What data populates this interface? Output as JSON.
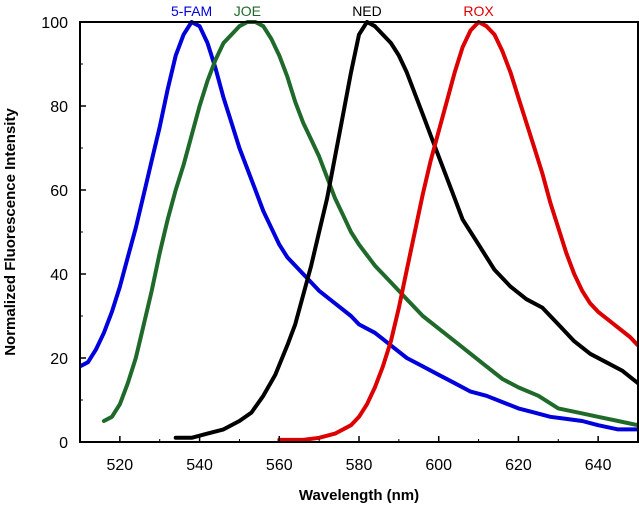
{
  "chart_data": {
    "type": "line",
    "title": "",
    "xlabel": "Wavelength (nm)",
    "ylabel": "Normalized Fluorescence Intensity",
    "xlim": [
      510,
      650
    ],
    "ylim": [
      0,
      100
    ],
    "xticks": [
      520,
      540,
      560,
      580,
      600,
      620,
      640
    ],
    "yticks": [
      0,
      20,
      40,
      60,
      80,
      100
    ],
    "grid": false,
    "legend": "series names printed above each peak",
    "series": [
      {
        "name": "5-FAM",
        "color": "#0000dd",
        "points": [
          [
            510,
            18
          ],
          [
            512,
            19
          ],
          [
            514,
            22
          ],
          [
            516,
            26
          ],
          [
            518,
            31
          ],
          [
            520,
            37
          ],
          [
            522,
            44
          ],
          [
            524,
            51
          ],
          [
            526,
            59
          ],
          [
            528,
            67
          ],
          [
            530,
            75
          ],
          [
            532,
            84
          ],
          [
            534,
            92
          ],
          [
            536,
            97
          ],
          [
            538,
            100
          ],
          [
            540,
            99
          ],
          [
            542,
            95
          ],
          [
            544,
            89
          ],
          [
            546,
            82
          ],
          [
            548,
            76
          ],
          [
            550,
            70
          ],
          [
            552,
            65
          ],
          [
            554,
            60
          ],
          [
            556,
            55
          ],
          [
            558,
            51
          ],
          [
            560,
            47
          ],
          [
            562,
            44
          ],
          [
            566,
            40
          ],
          [
            570,
            36
          ],
          [
            574,
            33
          ],
          [
            578,
            30
          ],
          [
            580,
            28
          ],
          [
            584,
            26
          ],
          [
            588,
            23
          ],
          [
            592,
            20
          ],
          [
            596,
            18
          ],
          [
            600,
            16
          ],
          [
            604,
            14
          ],
          [
            608,
            12
          ],
          [
            612,
            11
          ],
          [
            616,
            9.5
          ],
          [
            620,
            8
          ],
          [
            624,
            7
          ],
          [
            628,
            6
          ],
          [
            632,
            5.5
          ],
          [
            636,
            5
          ],
          [
            640,
            4
          ],
          [
            645,
            3
          ],
          [
            650,
            3
          ]
        ]
      },
      {
        "name": "JOE",
        "color": "#1f6a2a",
        "points": [
          [
            516,
            5
          ],
          [
            518,
            6
          ],
          [
            520,
            9
          ],
          [
            522,
            14
          ],
          [
            524,
            20
          ],
          [
            526,
            28
          ],
          [
            528,
            36
          ],
          [
            530,
            45
          ],
          [
            532,
            53
          ],
          [
            534,
            60
          ],
          [
            536,
            66
          ],
          [
            538,
            73
          ],
          [
            540,
            80
          ],
          [
            542,
            86
          ],
          [
            544,
            91
          ],
          [
            546,
            95
          ],
          [
            548,
            97
          ],
          [
            550,
            99
          ],
          [
            552,
            100
          ],
          [
            554,
            100
          ],
          [
            556,
            99
          ],
          [
            558,
            96
          ],
          [
            560,
            92
          ],
          [
            562,
            87
          ],
          [
            564,
            81
          ],
          [
            566,
            76
          ],
          [
            568,
            72
          ],
          [
            570,
            68
          ],
          [
            572,
            63
          ],
          [
            574,
            58
          ],
          [
            576,
            54
          ],
          [
            578,
            50
          ],
          [
            580,
            47
          ],
          [
            584,
            42
          ],
          [
            588,
            38
          ],
          [
            592,
            34
          ],
          [
            596,
            30
          ],
          [
            600,
            27
          ],
          [
            604,
            24
          ],
          [
            608,
            21
          ],
          [
            612,
            18
          ],
          [
            616,
            15
          ],
          [
            620,
            13
          ],
          [
            625,
            11
          ],
          [
            630,
            8
          ],
          [
            635,
            7
          ],
          [
            640,
            6
          ],
          [
            645,
            5
          ],
          [
            650,
            4
          ]
        ]
      },
      {
        "name": "NED",
        "color": "#000000",
        "points": [
          [
            534,
            1
          ],
          [
            538,
            1
          ],
          [
            542,
            2
          ],
          [
            546,
            3
          ],
          [
            550,
            5
          ],
          [
            553,
            7
          ],
          [
            556,
            11
          ],
          [
            559,
            16
          ],
          [
            562,
            23
          ],
          [
            564,
            28
          ],
          [
            566,
            35
          ],
          [
            568,
            42
          ],
          [
            570,
            50
          ],
          [
            572,
            58
          ],
          [
            574,
            68
          ],
          [
            576,
            78
          ],
          [
            578,
            88
          ],
          [
            580,
            97
          ],
          [
            582,
            100
          ],
          [
            584,
            99
          ],
          [
            586,
            97
          ],
          [
            588,
            95
          ],
          [
            590,
            92
          ],
          [
            592,
            88
          ],
          [
            594,
            83
          ],
          [
            596,
            78
          ],
          [
            598,
            73
          ],
          [
            600,
            68
          ],
          [
            602,
            63
          ],
          [
            604,
            58
          ],
          [
            606,
            53
          ],
          [
            610,
            47
          ],
          [
            614,
            41
          ],
          [
            618,
            37
          ],
          [
            622,
            34
          ],
          [
            626,
            32
          ],
          [
            630,
            28
          ],
          [
            634,
            24
          ],
          [
            638,
            21
          ],
          [
            642,
            19
          ],
          [
            646,
            17
          ],
          [
            650,
            14
          ]
        ]
      },
      {
        "name": "ROX",
        "color": "#dd0000",
        "points": [
          [
            560,
            0.5
          ],
          [
            566,
            0.5
          ],
          [
            570,
            1
          ],
          [
            574,
            2
          ],
          [
            578,
            4
          ],
          [
            580,
            6
          ],
          [
            582,
            9
          ],
          [
            584,
            13
          ],
          [
            586,
            18
          ],
          [
            588,
            24
          ],
          [
            590,
            32
          ],
          [
            592,
            41
          ],
          [
            594,
            50
          ],
          [
            596,
            59
          ],
          [
            598,
            67
          ],
          [
            600,
            74
          ],
          [
            602,
            81
          ],
          [
            604,
            88
          ],
          [
            606,
            94
          ],
          [
            608,
            98
          ],
          [
            610,
            100
          ],
          [
            612,
            99
          ],
          [
            614,
            97
          ],
          [
            616,
            93
          ],
          [
            618,
            88
          ],
          [
            620,
            82
          ],
          [
            622,
            76
          ],
          [
            624,
            70
          ],
          [
            626,
            64
          ],
          [
            628,
            57
          ],
          [
            630,
            51
          ],
          [
            632,
            45
          ],
          [
            634,
            40
          ],
          [
            636,
            36
          ],
          [
            638,
            33
          ],
          [
            640,
            31
          ],
          [
            644,
            28
          ],
          [
            648,
            25
          ],
          [
            650,
            23
          ]
        ]
      }
    ]
  }
}
